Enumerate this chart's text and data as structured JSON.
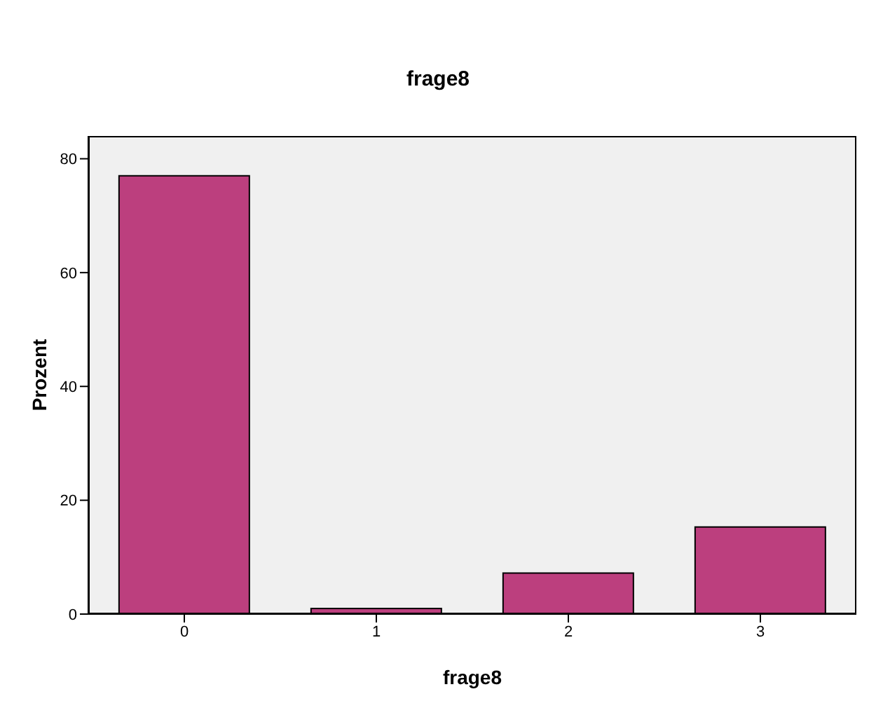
{
  "chart_data": {
    "type": "bar",
    "title": "frage8",
    "xlabel": "frage8",
    "ylabel": "Prozent",
    "categories": [
      "0",
      "1",
      "2",
      "3"
    ],
    "values": [
      77.0,
      1.0,
      7.2,
      15.3
    ],
    "color": "#bc3f7e",
    "ylim": [
      0,
      84
    ],
    "yticks": [
      0,
      20,
      40,
      60,
      80
    ],
    "grid": false
  }
}
